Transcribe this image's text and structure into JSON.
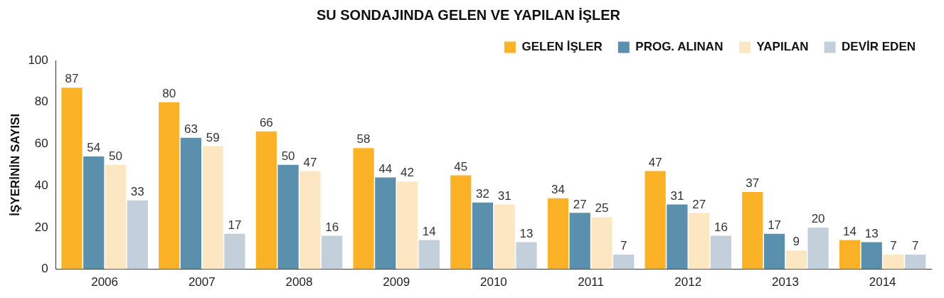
{
  "chart_data": {
    "type": "bar",
    "title": "SU SONDAJINDA GELEN VE YAPILAN İŞLER",
    "ylabel": "İŞYERİNİN SAYISI",
    "categories": [
      "2006",
      "2007",
      "2008",
      "2009",
      "2010",
      "2011",
      "2012",
      "2013",
      "2014"
    ],
    "series": [
      {
        "name": "GELEN İŞLER",
        "color": "#fbb226",
        "values": [
          87,
          80,
          66,
          58,
          45,
          34,
          47,
          37,
          14
        ]
      },
      {
        "name": "PROG. ALINAN",
        "color": "#5b8fae",
        "values": [
          54,
          63,
          50,
          44,
          32,
          27,
          31,
          17,
          13
        ]
      },
      {
        "name": "YAPILAN",
        "color": "#fde7c3",
        "values": [
          50,
          59,
          47,
          42,
          31,
          25,
          27,
          9,
          7
        ]
      },
      {
        "name": "DEVİR EDEN",
        "color": "#c3cfda",
        "values": [
          33,
          17,
          16,
          14,
          13,
          7,
          16,
          20,
          7
        ]
      }
    ],
    "ylim": [
      0,
      100
    ],
    "yticks": [
      0,
      20,
      40,
      60,
      80,
      100
    ],
    "grid": false,
    "legend": "top right",
    "data_labels": true
  }
}
